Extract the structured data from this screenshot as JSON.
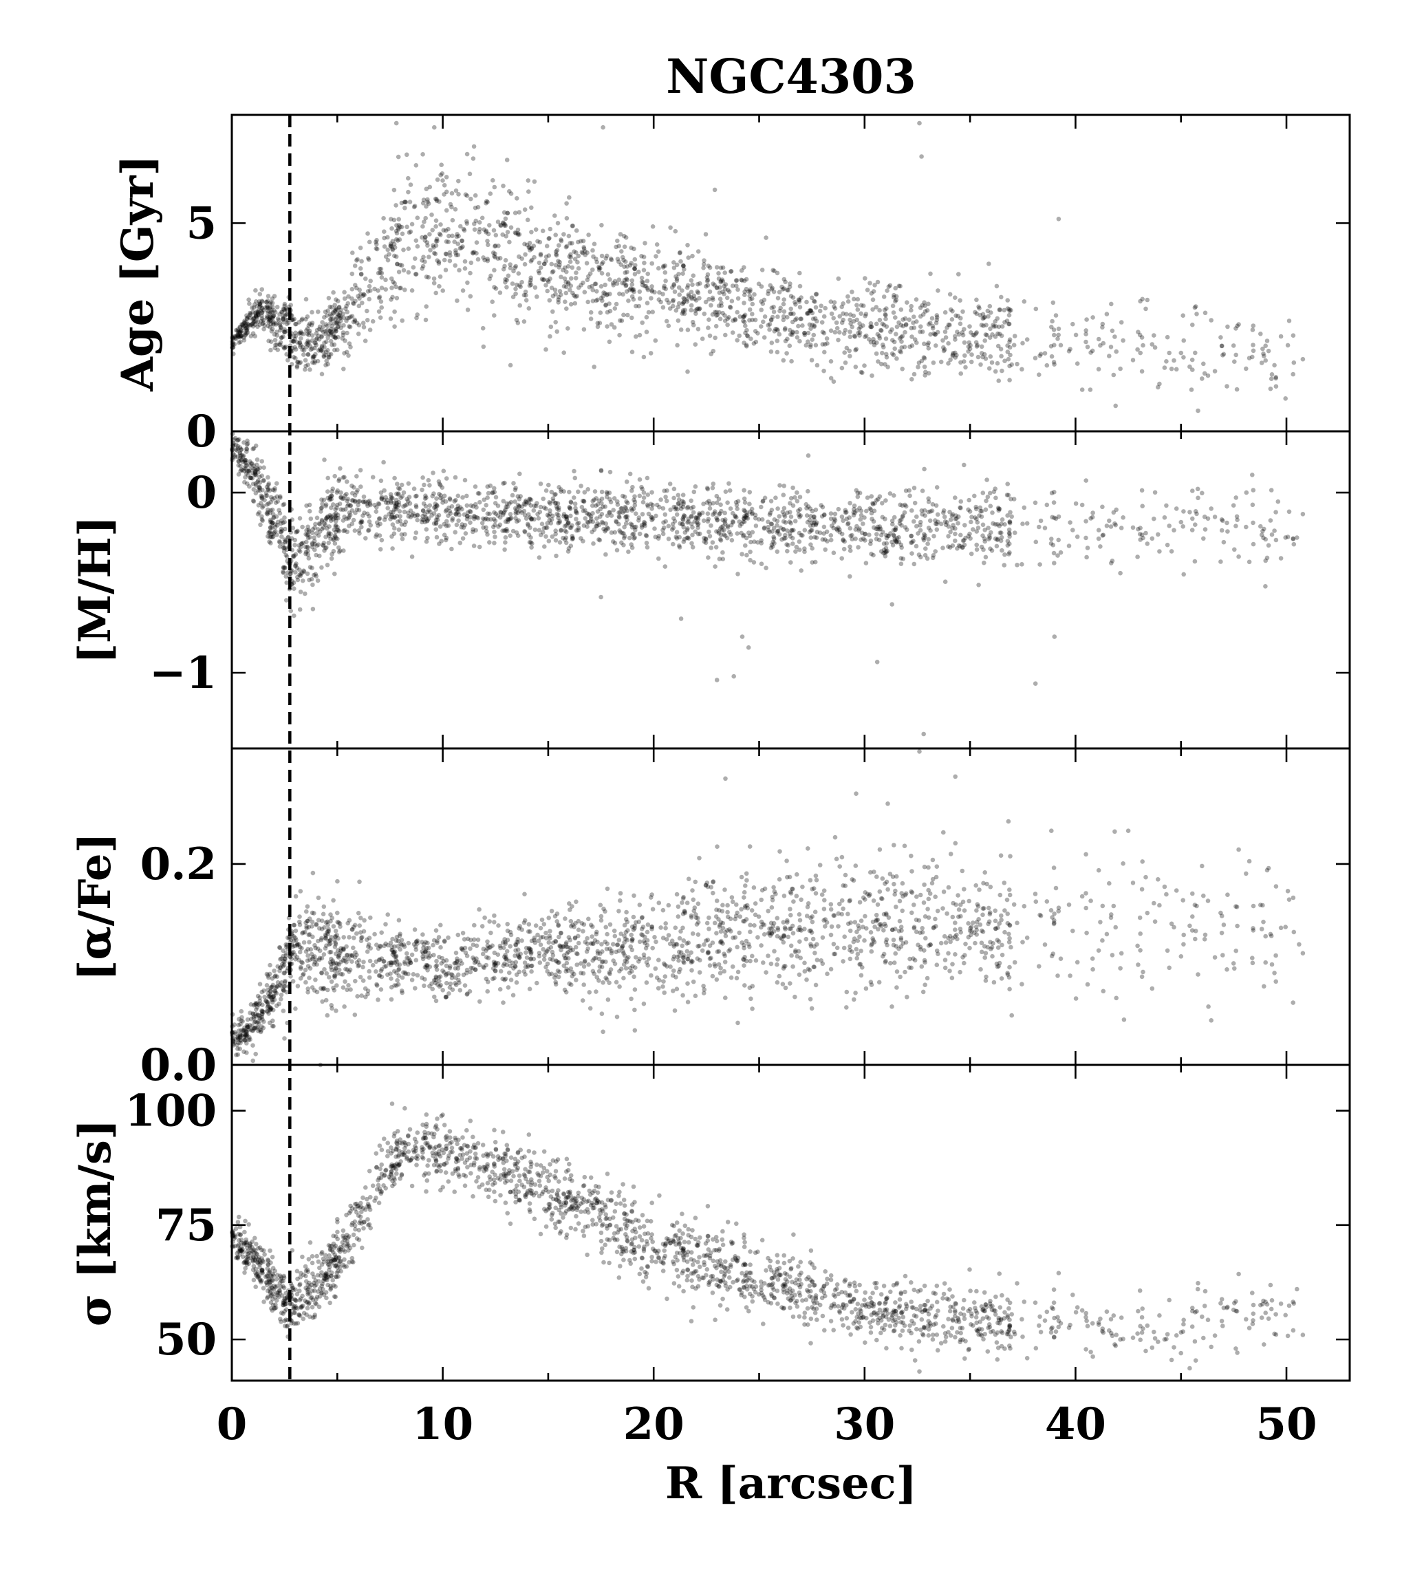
{
  "chart_data": {
    "type": "scatter",
    "title": "NGC4303",
    "xlabel": "R [arcsec]",
    "xlim": [
      0,
      53
    ],
    "xticks": [
      0,
      10,
      20,
      30,
      40,
      50
    ],
    "xtick_labels": [
      "0",
      "10",
      "20",
      "30",
      "40",
      "50"
    ],
    "shared_x": true,
    "vline_x": 2.75,
    "vline_style": "dashed",
    "marker_color": "#000000",
    "panels": [
      {
        "key": "age",
        "ylabel": "Age [Gyr]",
        "ylim": [
          0,
          7.6
        ],
        "yticks": [
          0,
          5
        ],
        "ytick_labels": [
          "0",
          "5"
        ],
        "trend": [
          [
            0,
            2.1
          ],
          [
            1.3,
            2.9
          ],
          [
            2.2,
            2.7
          ],
          [
            3.0,
            2.2
          ],
          [
            4.0,
            2.0
          ],
          [
            5.0,
            2.5
          ],
          [
            6.5,
            3.5
          ],
          [
            8.0,
            4.6
          ],
          [
            9.5,
            4.8
          ],
          [
            11,
            4.6
          ],
          [
            13,
            4.3
          ],
          [
            16,
            3.8
          ],
          [
            20,
            3.4
          ],
          [
            25,
            2.9
          ],
          [
            30,
            2.55
          ],
          [
            35,
            2.35
          ],
          [
            40,
            2.2
          ],
          [
            45,
            2.0
          ],
          [
            50,
            1.9
          ]
        ],
        "spread": [
          [
            0,
            0.12
          ],
          [
            2.5,
            0.35
          ],
          [
            4.5,
            0.4
          ],
          [
            6.5,
            0.7
          ],
          [
            9,
            0.85
          ],
          [
            15,
            0.7
          ],
          [
            25,
            0.55
          ],
          [
            35,
            0.5
          ],
          [
            50,
            0.5
          ]
        ],
        "outliers": [
          [
            7.8,
            7.4
          ],
          [
            9.6,
            7.3
          ],
          [
            17.6,
            7.3
          ],
          [
            32.6,
            7.4
          ],
          [
            32.7,
            6.6
          ],
          [
            22.9,
            5.8
          ],
          [
            39.2,
            5.1
          ],
          [
            40.7,
            1.0
          ],
          [
            45.5,
            1.0
          ],
          [
            49.5,
            1.3
          ]
        ]
      },
      {
        "key": "mh",
        "ylabel": "[M/H]",
        "ylim": [
          -1.42,
          0.34
        ],
        "yticks": [
          0,
          -1
        ],
        "ytick_labels": [
          "0",
          "−1"
        ],
        "trend": [
          [
            0,
            0.25
          ],
          [
            0.8,
            0.15
          ],
          [
            1.6,
            -0.05
          ],
          [
            2.2,
            -0.2
          ],
          [
            2.7,
            -0.36
          ],
          [
            3.3,
            -0.4
          ],
          [
            4.0,
            -0.25
          ],
          [
            5.0,
            -0.1
          ],
          [
            7,
            -0.1
          ],
          [
            12,
            -0.11
          ],
          [
            20,
            -0.14
          ],
          [
            28,
            -0.18
          ],
          [
            35,
            -0.2
          ],
          [
            50,
            -0.2
          ]
        ],
        "spread": [
          [
            0,
            0.05
          ],
          [
            2.5,
            0.12
          ],
          [
            4,
            0.15
          ],
          [
            6,
            0.08
          ],
          [
            20,
            0.09
          ],
          [
            35,
            0.1
          ],
          [
            50,
            0.12
          ]
        ],
        "outliers": [
          [
            17.5,
            -0.58
          ],
          [
            21.3,
            -0.7
          ],
          [
            24.2,
            -0.8
          ],
          [
            24.5,
            -0.86
          ],
          [
            23.0,
            -1.04
          ],
          [
            23.8,
            -1.02
          ],
          [
            30.6,
            -0.94
          ],
          [
            31.3,
            -0.62
          ],
          [
            32.8,
            -1.34
          ],
          [
            38.1,
            -1.06
          ],
          [
            39.0,
            -0.8
          ],
          [
            45.8,
            0.02
          ],
          [
            48.1,
            0.0
          ],
          [
            49.0,
            -0.52
          ],
          [
            49.6,
            -0.05
          ],
          [
            50.5,
            -0.25
          ]
        ]
      },
      {
        "key": "afe",
        "ylabel": "[α/Fe]",
        "ylim": [
          0.0,
          0.315
        ],
        "yticks": [
          0.0,
          0.2
        ],
        "ytick_labels": [
          "0.0",
          "0.2"
        ],
        "trend": [
          [
            0,
            0.03
          ],
          [
            0.8,
            0.03
          ],
          [
            1.6,
            0.06
          ],
          [
            2.2,
            0.08
          ],
          [
            2.8,
            0.11
          ],
          [
            3.5,
            0.12
          ],
          [
            4.5,
            0.11
          ],
          [
            7,
            0.105
          ],
          [
            10,
            0.1
          ],
          [
            14,
            0.11
          ],
          [
            20,
            0.12
          ],
          [
            25,
            0.135
          ],
          [
            30,
            0.14
          ],
          [
            40,
            0.14
          ],
          [
            50,
            0.14
          ]
        ],
        "spread": [
          [
            0,
            0.008
          ],
          [
            2.5,
            0.018
          ],
          [
            4,
            0.03
          ],
          [
            8,
            0.018
          ],
          [
            15,
            0.02
          ],
          [
            20,
            0.028
          ],
          [
            30,
            0.035
          ],
          [
            50,
            0.04
          ]
        ],
        "outliers": [
          [
            23.4,
            0.285
          ],
          [
            32.6,
            0.312
          ],
          [
            34.3,
            0.287
          ],
          [
            29.6,
            0.27
          ],
          [
            31.1,
            0.26
          ],
          [
            42.5,
            0.233
          ],
          [
            42.3,
            0.045
          ],
          [
            46.3,
            0.058
          ],
          [
            49.5,
            0.083
          ],
          [
            50.6,
            0.12
          ],
          [
            17.6,
            0.033
          ],
          [
            4.2,
            0.0
          ]
        ]
      },
      {
        "key": "sigma",
        "ylabel": "σ [km/s]",
        "ylim": [
          41,
          110
        ],
        "yticks": [
          50,
          75,
          100
        ],
        "ytick_labels": [
          "50",
          "75",
          "100"
        ],
        "trend": [
          [
            0,
            72
          ],
          [
            1.0,
            68
          ],
          [
            2.0,
            61
          ],
          [
            2.8,
            58
          ],
          [
            3.5,
            60
          ],
          [
            4.5,
            64
          ],
          [
            5.5,
            72
          ],
          [
            6.5,
            81
          ],
          [
            7.5,
            88
          ],
          [
            8.5,
            92
          ],
          [
            10,
            92
          ],
          [
            12,
            89
          ],
          [
            14,
            84
          ],
          [
            16,
            80
          ],
          [
            18,
            76
          ],
          [
            20,
            71
          ],
          [
            22,
            67
          ],
          [
            25,
            63
          ],
          [
            28,
            59
          ],
          [
            31,
            56
          ],
          [
            35,
            54
          ],
          [
            40,
            53
          ],
          [
            45,
            53
          ],
          [
            50,
            55
          ]
        ],
        "spread": [
          [
            0,
            1.8
          ],
          [
            3,
            3.5
          ],
          [
            6,
            4
          ],
          [
            10,
            3.5
          ],
          [
            20,
            4.5
          ],
          [
            30,
            3.5
          ],
          [
            50,
            3.5
          ]
        ],
        "outliers": [
          [
            7.6,
            101.5
          ],
          [
            8.2,
            100.5
          ],
          [
            32.6,
            43
          ],
          [
            45.0,
            47
          ],
          [
            47.6,
            48
          ],
          [
            50.5,
            61
          ],
          [
            45.8,
            61
          ],
          [
            39.2,
            64.5
          ]
        ]
      }
    ]
  }
}
